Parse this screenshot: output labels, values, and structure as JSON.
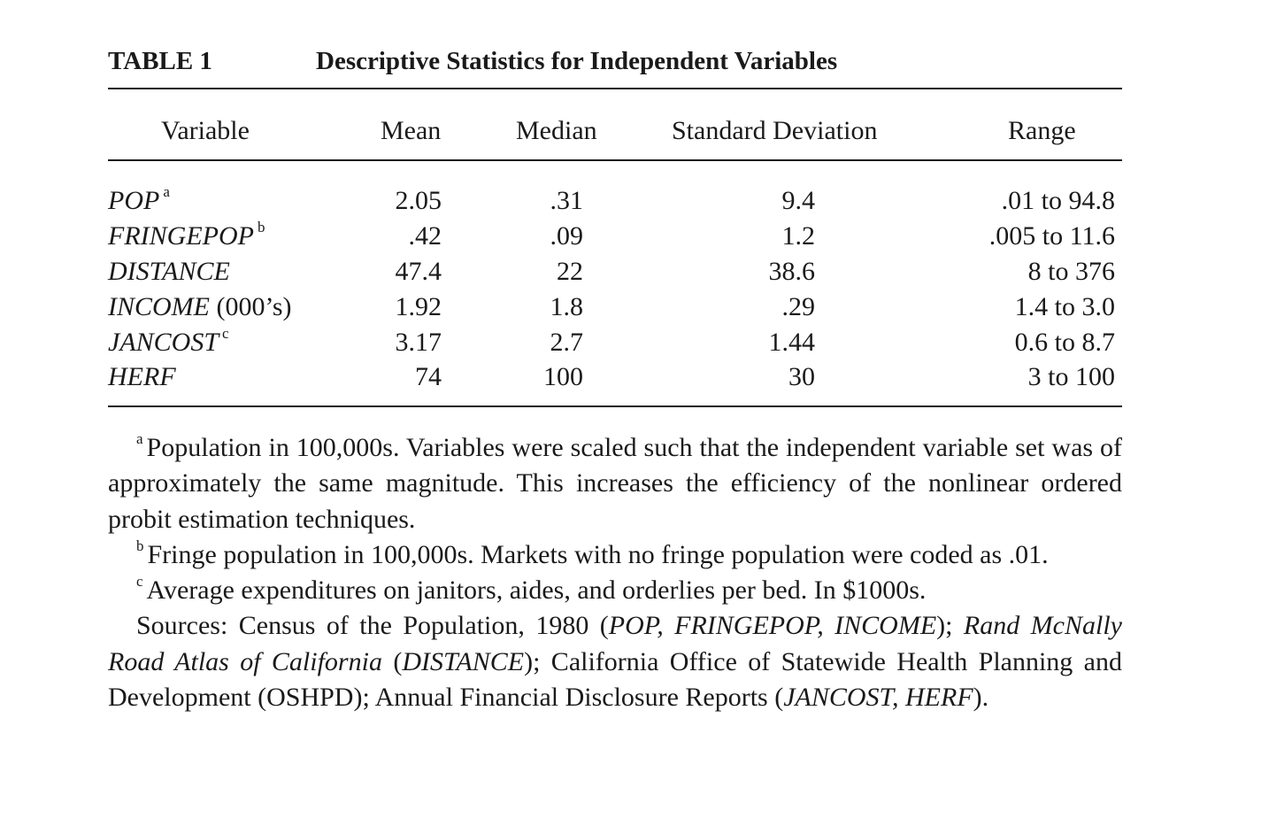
{
  "table": {
    "label": "TABLE 1",
    "title": "Descriptive Statistics for Independent Variables",
    "headers": {
      "variable": "Variable",
      "mean": "Mean",
      "median": "Median",
      "sd": "Standard Deviation",
      "range": "Range"
    },
    "rows": [
      {
        "name": "POP",
        "suffix": "",
        "mark": "a",
        "mean": "2.05",
        "median": ".31",
        "sd": "9.4",
        "range": ".01 to 94.8"
      },
      {
        "name": "FRINGEPOP",
        "suffix": "",
        "mark": "b",
        "mean": ".42",
        "median": ".09",
        "sd": "1.2",
        "range": ".005 to 11.6"
      },
      {
        "name": "DISTANCE",
        "suffix": "",
        "mark": "",
        "mean": "47.4",
        "median": "22",
        "sd": "38.6",
        "range": "8 to 376"
      },
      {
        "name": "INCOME",
        "suffix": " (000’s)",
        "mark": "",
        "mean": "1.92",
        "median": "1.8",
        "sd": ".29",
        "range": "1.4 to 3.0"
      },
      {
        "name": "JANCOST",
        "suffix": "",
        "mark": "c",
        "mean": "3.17",
        "median": "2.7",
        "sd": "1.44",
        "range": "0.6 to 8.7"
      },
      {
        "name": "HERF",
        "suffix": "",
        "mark": "",
        "mean": "74",
        "median": "100",
        "sd": "30",
        "range": "3 to 100"
      }
    ]
  },
  "notes": {
    "a_mark": "a",
    "a_text": "Population in 100,000s. Variables were scaled such that the independent variable set was of approximately the same magnitude. This increases the efficiency of the nonlinear ordered probit estimation techniques.",
    "b_mark": "b",
    "b_text": "Fringe population in 100,000s. Markets with no fringe population were coded as .01.",
    "c_mark": "c",
    "c_text": "Average expenditures on janitors, aides, and orderlies per bed. In $1000s.",
    "sources": {
      "p1": "Sources: Census of the Population, 1980 (",
      "p2": "POP, FRINGEPOP, INCOME",
      "p3": "); ",
      "p4": "Rand McNally Road Atlas of California",
      "p5": " (",
      "p6": "DISTANCE",
      "p7": "); California Office of Statewide Health Planning and Development (OSHPD); Annual Financial Disclosure Reports (",
      "p8": "JAN­COST, HERF",
      "p9": ")."
    }
  }
}
